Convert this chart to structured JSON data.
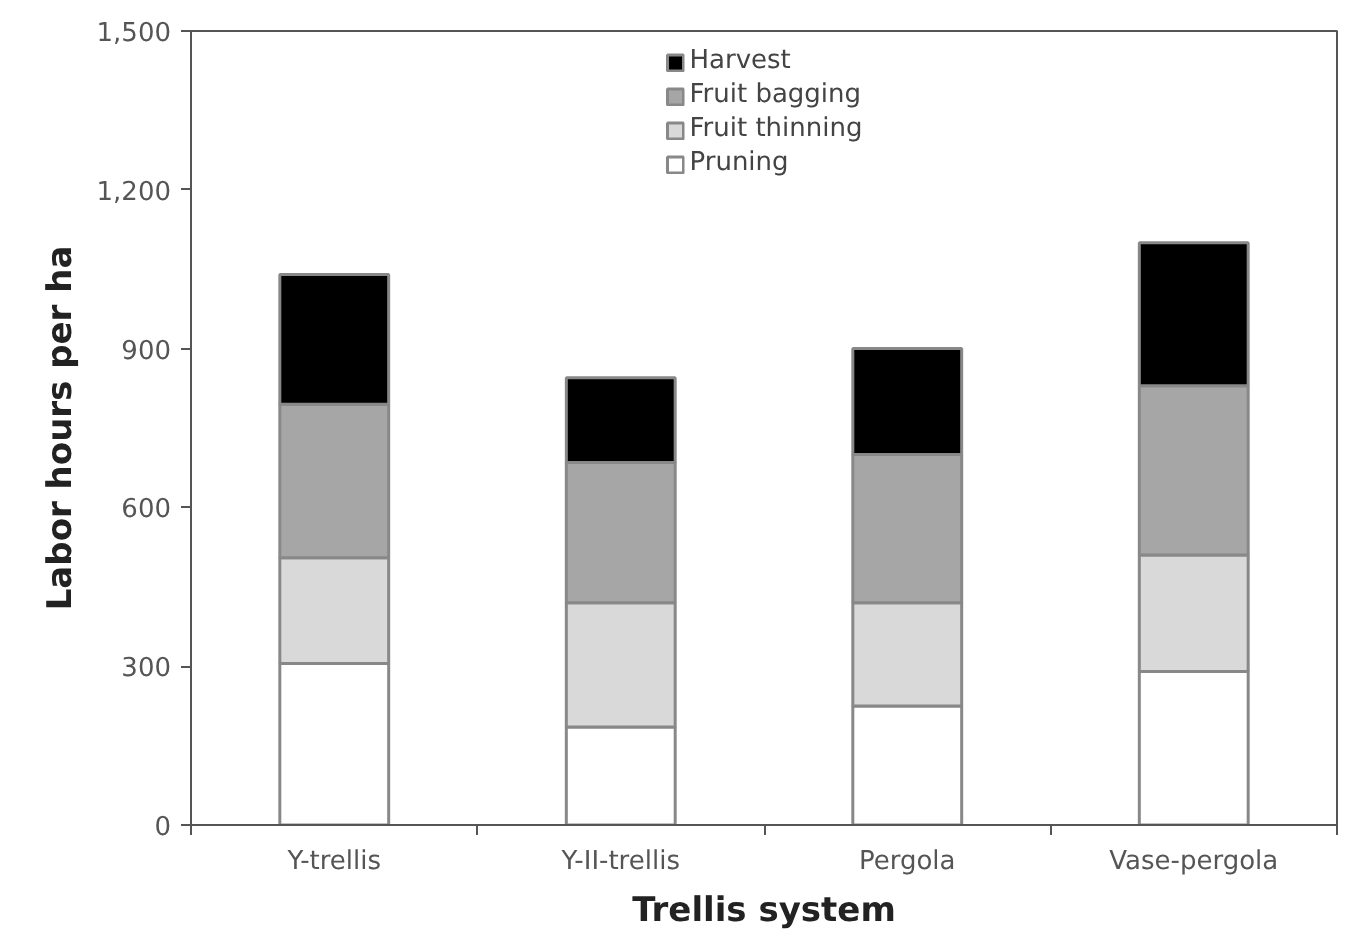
{
  "chart_data": {
    "type": "bar",
    "stacked": true,
    "xlabel": "Trellis system",
    "ylabel": "Labor hours per ha",
    "categories": [
      "Y-trellis",
      "Y-II-trellis",
      "Pergola",
      "Vase-pergola"
    ],
    "series": [
      {
        "name": "Pruning",
        "color": "#ffffff",
        "values": [
          305,
          185,
          225,
          290
        ]
      },
      {
        "name": "Fruit thinning",
        "color": "#d9d9d9",
        "values": [
          200,
          235,
          195,
          220
        ]
      },
      {
        "name": "Fruit bagging",
        "color": "#a6a6a6",
        "values": [
          290,
          265,
          280,
          320
        ]
      },
      {
        "name": "Harvest",
        "color": "#000000",
        "values": [
          245,
          160,
          200,
          270
        ]
      }
    ],
    "ylim": [
      0,
      1500
    ],
    "yticks": [
      0,
      {
        "value": 300,
        "label": "300"
      },
      {
        "value": 600,
        "label": "600"
      },
      {
        "value": 900,
        "label": "900"
      },
      {
        "value": 1200,
        "label": "1,200"
      },
      {
        "value": 1500,
        "label": "1,500"
      }
    ],
    "grid": false,
    "legend": "top"
  }
}
